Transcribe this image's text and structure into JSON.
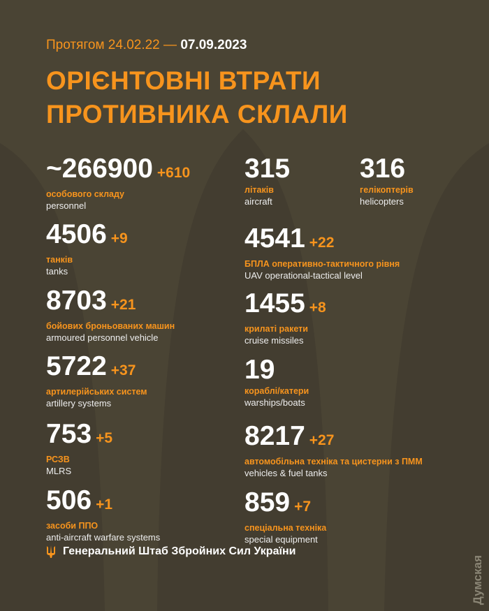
{
  "header": {
    "period_prefix": "Протягом 24.02.22 —",
    "period_end": "07.09.2023",
    "title_line1": "ОРІЄНТОВНІ ВТРАТИ",
    "title_line2": "ПРОТИВНИКА СКЛАЛИ"
  },
  "colors": {
    "background": "#4a4434",
    "accent": "#f7941d",
    "text": "#ffffff"
  },
  "left": [
    {
      "value": "~266900",
      "delta": "+610",
      "ua": "особового складу",
      "en": "personnel"
    },
    {
      "value": "4506",
      "delta": "+9",
      "ua": "танків",
      "en": "tanks"
    },
    {
      "value": "8703",
      "delta": "+21",
      "ua": "бойових броньованих машин",
      "en": "armoured personnel vehicle"
    },
    {
      "value": "5722",
      "delta": "+37",
      "ua": "артилерійських систем",
      "en": "artillery systems"
    },
    {
      "value": "753",
      "delta": "+5",
      "ua": "РСЗВ",
      "en": "MLRS"
    },
    {
      "value": "506",
      "delta": "+1",
      "ua": "засоби ППО",
      "en": "anti-aircraft warfare systems"
    }
  ],
  "right": [
    {
      "value": "315",
      "delta": "",
      "ua": "літаків",
      "en": "aircraft"
    },
    {
      "value": "316",
      "delta": "",
      "ua": "гелікоптерів",
      "en": "helicopters"
    },
    {
      "value": "4541",
      "delta": "+22",
      "ua": "БПЛА оперативно-тактичного рівня",
      "en": "UAV operational-tactical level"
    },
    {
      "value": "1455",
      "delta": "+8",
      "ua": "крилаті ракети",
      "en": "cruise missiles"
    },
    {
      "value": "19",
      "delta": "",
      "ua": "кораблі/катери",
      "en": "warships/boats"
    },
    {
      "value": "8217",
      "delta": "+27",
      "ua": "автомобільна техніка та цистерни з ПММ",
      "en": "vehicles & fuel tanks"
    },
    {
      "value": "859",
      "delta": "+7",
      "ua": "спеціальна техніка",
      "en": "special equipment"
    }
  ],
  "footer": {
    "icon": "trident-icon",
    "text": "Генеральний Штаб Збройних Сил України"
  },
  "watermark": "Думская"
}
